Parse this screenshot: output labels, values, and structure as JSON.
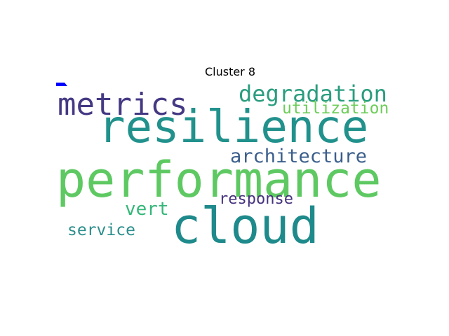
{
  "title": "Cluster 8",
  "words": [
    {
      "text": "performance",
      "color": "#5ec962"
    },
    {
      "text": "resilience",
      "color": "#21918c"
    },
    {
      "text": "cloud",
      "color": "#1f8a8b"
    },
    {
      "text": "metrics",
      "color": "#443983"
    },
    {
      "text": "degradation",
      "color": "#2a9d7f"
    },
    {
      "text": "utilization",
      "color": "#6dcd59"
    },
    {
      "text": "architecture",
      "color": "#3b5e8c"
    },
    {
      "text": "response",
      "color": "#46327e"
    },
    {
      "text": "vert",
      "color": "#35b779"
    },
    {
      "text": "service",
      "color": "#2c8e8c"
    }
  ],
  "accent_color": "#0000ff"
}
